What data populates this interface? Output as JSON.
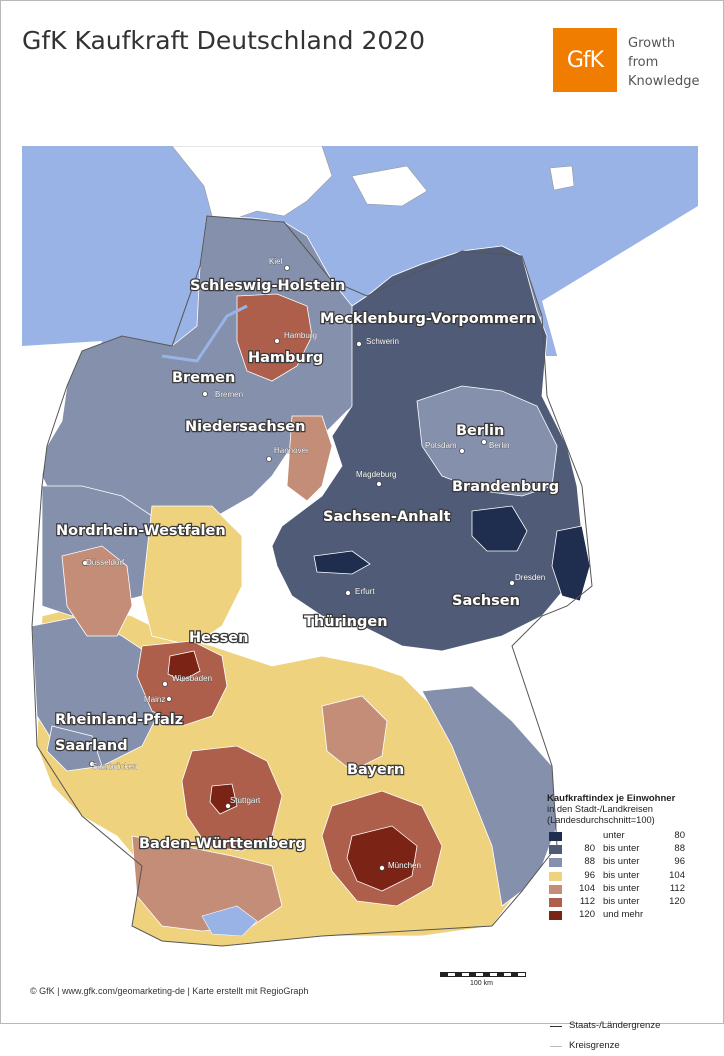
{
  "title": "GfK Kaufkraft Deutschland 2020",
  "logo": {
    "text": "GfK",
    "color": "#f07d00",
    "tagline": [
      "Growth",
      "from",
      "Knowledge"
    ]
  },
  "colors": {
    "sea": "#99b3e6",
    "c1": "#1f2d4f",
    "c2": "#505b78",
    "c3": "#8590ac",
    "c4": "#efd27e",
    "c5": "#c48d78",
    "c6": "#ad5f4c",
    "c7": "#7b2415"
  },
  "states": [
    "Schleswig-Holstein",
    "Mecklenburg-Vorpommern",
    "Hamburg",
    "Bremen",
    "Niedersachsen",
    "Berlin",
    "Brandenburg",
    "Sachsen-Anhalt",
    "Nordrhein-Westfalen",
    "Sachsen",
    "Thüringen",
    "Hessen",
    "Rheinland-Pfalz",
    "Saarland",
    "Bayern",
    "Baden-Württemberg"
  ],
  "cities": [
    "Kiel",
    "Hamburg",
    "Schwerin",
    "Bremen",
    "Hannover",
    "Potsdam",
    "Berlin",
    "Magdeburg",
    "Düsseldorf",
    "Erfurt",
    "Dresden",
    "Wiesbaden",
    "Mainz",
    "Saarbrücken",
    "Stuttgart",
    "München"
  ],
  "legend": {
    "title": "Kaufkraftindex je Einwohner",
    "subtitle_lines": [
      "in den Stadt-/Landkreisen",
      "(Landesdurchschnitt=100)"
    ],
    "rows": [
      {
        "from": "",
        "op": "unter",
        "to": "80",
        "color": "#1f2d4f"
      },
      {
        "from": "80",
        "op": "bis unter",
        "to": "88",
        "color": "#505b78"
      },
      {
        "from": "88",
        "op": "bis unter",
        "to": "96",
        "color": "#8590ac"
      },
      {
        "from": "96",
        "op": "bis unter",
        "to": "104",
        "color": "#efd27e"
      },
      {
        "from": "104",
        "op": "bis unter",
        "to": "112",
        "color": "#c48d78"
      },
      {
        "from": "112",
        "op": "bis unter",
        "to": "120",
        "color": "#ad5f4c"
      },
      {
        "from": "120",
        "op": "und mehr",
        "to": "",
        "color": "#7b2415"
      }
    ],
    "lines": [
      {
        "label": "Staats-/Ländergrenze",
        "color": "#333333"
      },
      {
        "label": "Kreisgrenze",
        "color": "#bbbbbb"
      }
    ]
  },
  "scale": {
    "label": "100 km"
  },
  "credits": "© GfK | www.gfk.com/geomarketing-de | Karte erstellt mit RegioGraph"
}
